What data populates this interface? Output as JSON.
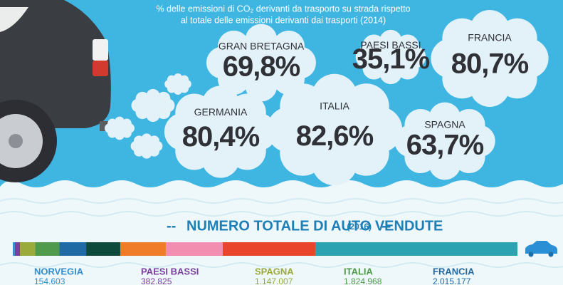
{
  "emissions": {
    "title_line1": "% delle emissioni di CO₂ derivanti da trasporto su strada rispetto",
    "title_line2": "al totale delle emissioni derivanti dai trasporti (2014)",
    "items": [
      {
        "country": "GRAN BRETAGNA",
        "value": "69,8%"
      },
      {
        "country": "PAESI BASSI",
        "value": "35,1%"
      },
      {
        "country": "FRANCIA",
        "value": "80,7%"
      },
      {
        "country": "GERMANIA",
        "value": "80,4%"
      },
      {
        "country": "ITALIA",
        "value": "82,6%"
      },
      {
        "country": "SPAGNA",
        "value": "63,7%"
      }
    ]
  },
  "chart_data": {
    "type": "stacked-bar",
    "title": "NUMERO TOTALE DI AUTO VENDUTE",
    "subtitle": "(2016)",
    "categories": [
      "NORVEGIA",
      "PAESI BASSI",
      "SPAGNA",
      "ITALIA",
      "FRANCIA",
      null,
      null,
      null,
      null,
      null
    ],
    "values": [
      154603,
      382825,
      1147007,
      1824968,
      2015177,
      2570000,
      3430000,
      4290000,
      6970000,
      15230000
    ],
    "value_labels": [
      "154.603",
      "382.825",
      "1.147.007",
      "1.824.968",
      "2.015.177",
      null,
      null,
      null,
      null,
      null
    ],
    "colors": [
      "#2f8fd0",
      "#7b3fa0",
      "#9aab3c",
      "#4f9a4b",
      "#1f6aa5",
      "#0e4a3c",
      "#f07c2a",
      "#f28fb0",
      "#e8452c",
      "#2ba3b0"
    ],
    "xlim": [
      0,
      38014580
    ]
  }
}
